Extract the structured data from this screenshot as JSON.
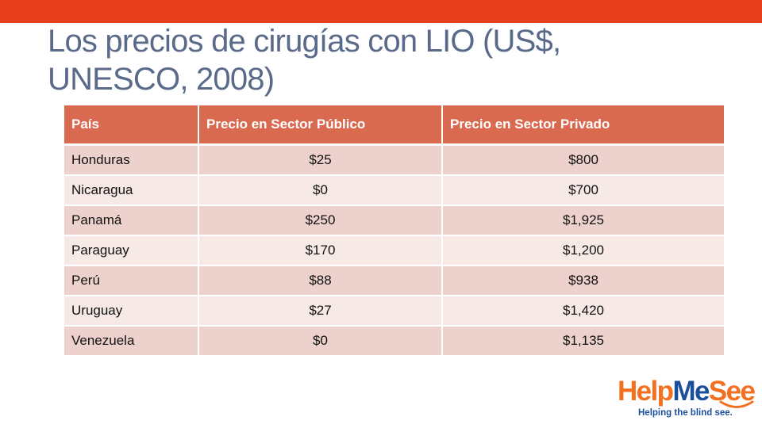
{
  "slide": {
    "title": "Los precios de cirugías con LIO (US$, UNESCO, 2008)",
    "accent_color": "#e8401c"
  },
  "table": {
    "headers": [
      "País",
      "Precio en Sector Público",
      "Precio en Sector Privado"
    ],
    "rows": [
      [
        "Honduras",
        "$25",
        "$800"
      ],
      [
        "Nicaragua",
        "$0",
        "$700"
      ],
      [
        "Panamá",
        "$250",
        "$1,925"
      ],
      [
        "Paraguay",
        "$170",
        "$1,200"
      ],
      [
        "Perú",
        "$88",
        "$938"
      ],
      [
        "Uruguay",
        "$27",
        "$1,420"
      ],
      [
        "Venezuela",
        "$0",
        "$1,135"
      ]
    ],
    "header_color": "#d96a50",
    "row_colors": [
      "#edd1cc",
      "#f6e9e6"
    ]
  },
  "logo": {
    "name_part1": "Help",
    "name_part2": "Me",
    "name_part3": "See",
    "tagline": "Helping the blind see.",
    "colors": {
      "orange": "#f37021",
      "blue": "#1b4f9c"
    }
  }
}
